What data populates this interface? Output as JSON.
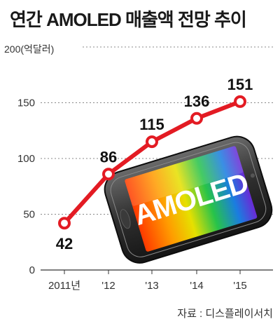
{
  "title": "연간 AMOLED 매출액 전망 추이",
  "source": "자료 : 디스플레이서치",
  "colors": {
    "line": "#e31b23",
    "grid": "#888888",
    "axis": "#333333"
  },
  "chart_data": {
    "type": "line",
    "title": "연간 AMOLED 매출액 전망 추이",
    "ylabel": "200(억달러)",
    "categories": [
      "2011년",
      "'12",
      "'13",
      "'14",
      "'15"
    ],
    "values": [
      42,
      86,
      115,
      136,
      151
    ],
    "data_labels": [
      "42",
      "86",
      "115",
      "136",
      "151"
    ],
    "ylim": [
      0,
      200
    ],
    "yticks": [
      0,
      50,
      100,
      150
    ],
    "ytick_labels": [
      "0",
      "50",
      "100",
      "150"
    ],
    "grid": true,
    "legend": "none",
    "image_text": "AMOLED"
  }
}
